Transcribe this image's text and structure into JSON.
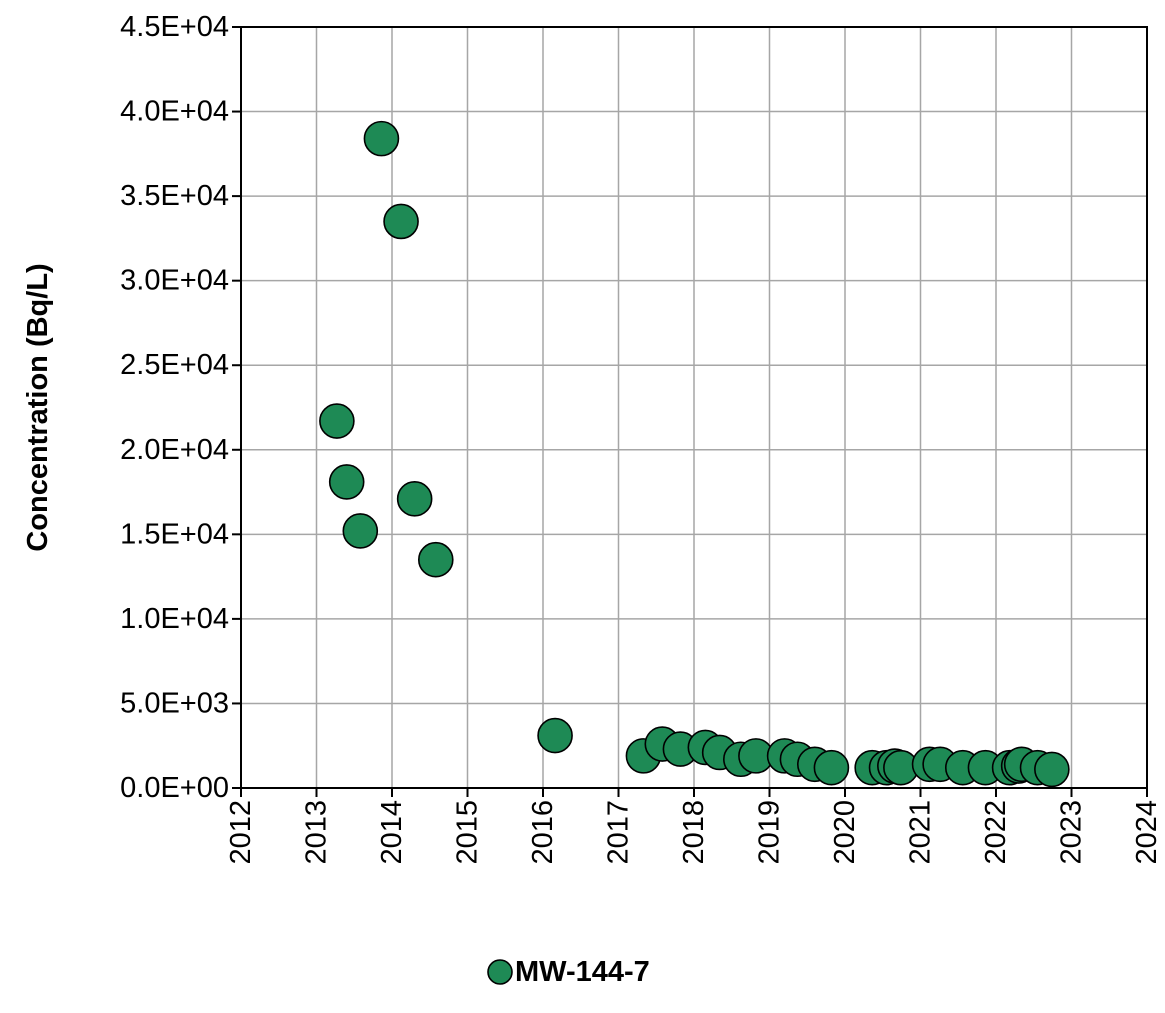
{
  "chart_data": {
    "type": "scatter",
    "title": "",
    "xlabel": "",
    "ylabel": "Concentration (Bq/L)",
    "xlim": [
      2012,
      2024
    ],
    "ylim": [
      0,
      45000
    ],
    "x_ticks": [
      "2012",
      "2013",
      "2014",
      "2015",
      "2016",
      "2017",
      "2018",
      "2019",
      "2020",
      "2021",
      "2022",
      "2023",
      "2024"
    ],
    "y_ticks": [
      "0.0E+00",
      "5.0E+03",
      "1.0E+04",
      "1.5E+04",
      "2.0E+04",
      "2.5E+04",
      "3.0E+04",
      "3.5E+04",
      "4.0E+04",
      "4.5E+04"
    ],
    "grid": true,
    "legend_position": "bottom",
    "colors": {
      "marker": "#1e8a55",
      "marker_edge": "#000000",
      "grid": "#a6a6a6"
    },
    "series": [
      {
        "name": "MW-144-7",
        "x": [
          2013.27,
          2013.4,
          2013.58,
          2013.86,
          2014.12,
          2014.3,
          2014.58,
          2016.16,
          2017.33,
          2017.58,
          2017.82,
          2018.15,
          2018.34,
          2018.62,
          2018.82,
          2019.2,
          2019.37,
          2019.6,
          2019.82,
          2020.36,
          2020.55,
          2020.66,
          2020.74,
          2021.12,
          2021.26,
          2021.56,
          2021.86,
          2022.18,
          2022.3,
          2022.34,
          2022.55,
          2022.74
        ],
        "y": [
          21700,
          18100,
          15200,
          38400,
          33500,
          17100,
          13500,
          3100,
          1900,
          2600,
          2300,
          2400,
          2100,
          1700,
          1900,
          1900,
          1700,
          1400,
          1200,
          1200,
          1200,
          1300,
          1200,
          1400,
          1400,
          1200,
          1200,
          1200,
          1300,
          1400,
          1200,
          1100
        ]
      }
    ]
  }
}
